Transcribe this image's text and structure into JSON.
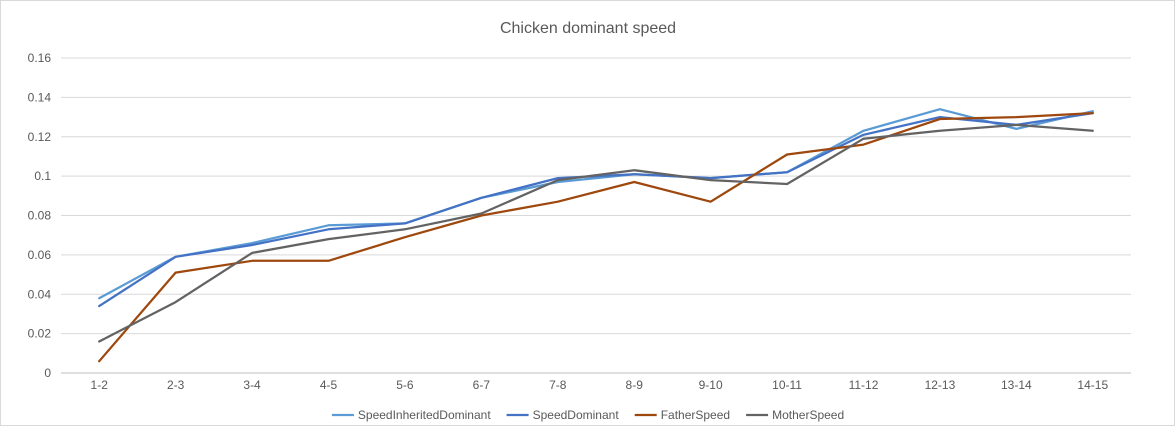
{
  "chart_data": {
    "type": "line",
    "title": "Chicken dominant speed",
    "xlabel": "",
    "ylabel": "",
    "categories": [
      "1-2",
      "2-3",
      "3-4",
      "4-5",
      "5-6",
      "6-7",
      "7-8",
      "8-9",
      "9-10",
      "10-11",
      "11-12",
      "12-13",
      "13-14",
      "14-15"
    ],
    "ylim": [
      0,
      0.16
    ],
    "yticks": [
      "0",
      "0.02",
      "0.04",
      "0.06",
      "0.08",
      "0.1",
      "0.12",
      "0.14",
      "0.16"
    ],
    "grid": true,
    "legend_position": "bottom",
    "series": [
      {
        "name": "SpeedInheritedDominant",
        "color": "#5b9bd5",
        "values": [
          0.038,
          0.059,
          0.066,
          0.075,
          0.076,
          0.089,
          0.097,
          0.101,
          0.099,
          0.102,
          0.123,
          0.134,
          0.124,
          0.133
        ]
      },
      {
        "name": "SpeedDominant",
        "color": "#4472c4",
        "values": [
          0.034,
          0.059,
          0.065,
          0.073,
          0.076,
          0.089,
          0.099,
          0.101,
          0.099,
          0.102,
          0.121,
          0.13,
          0.126,
          0.132
        ]
      },
      {
        "name": "FatherSpeed",
        "color": "#9e480e",
        "values": [
          0.006,
          0.051,
          0.057,
          0.057,
          0.069,
          0.08,
          0.087,
          0.097,
          0.087,
          0.111,
          0.116,
          0.129,
          0.13,
          0.132
        ]
      },
      {
        "name": "MotherSpeed",
        "color": "#636363",
        "values": [
          0.016,
          0.036,
          0.061,
          0.068,
          0.073,
          0.081,
          0.098,
          0.103,
          0.098,
          0.096,
          0.119,
          0.123,
          0.126,
          0.123
        ]
      }
    ]
  }
}
